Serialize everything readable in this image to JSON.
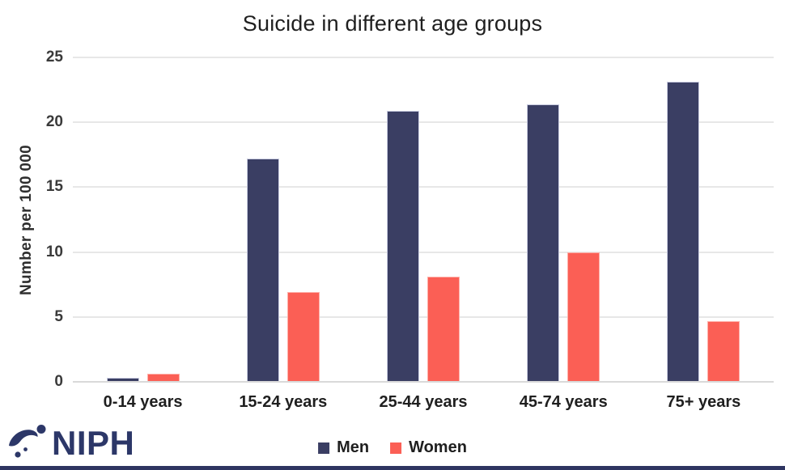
{
  "chart_data": {
    "type": "bar",
    "title": "Suicide in different age groups",
    "categories": [
      "0-14 years",
      "15-24 years",
      "25-44 years",
      "45-74 years",
      "75+ years"
    ],
    "series": [
      {
        "name": "Men",
        "color": "#3A3E63",
        "values": [
          0.3,
          17.2,
          20.9,
          21.4,
          23.1
        ]
      },
      {
        "name": "Women",
        "color": "#FB5F55",
        "values": [
          0.6,
          6.9,
          8.1,
          10.0,
          4.7
        ]
      }
    ],
    "xlabel": "",
    "ylabel": "Number  per 100 000",
    "ylim": [
      0,
      25
    ],
    "yticks": [
      0,
      5,
      10,
      15,
      20,
      25
    ],
    "grid": true,
    "legend_position": "bottom",
    "gridline_color": "#e7e7e7",
    "axis_line_color": "#d9d9d9"
  },
  "branding": {
    "logo_text": "NIPH",
    "logo_color": "#2c3768"
  }
}
